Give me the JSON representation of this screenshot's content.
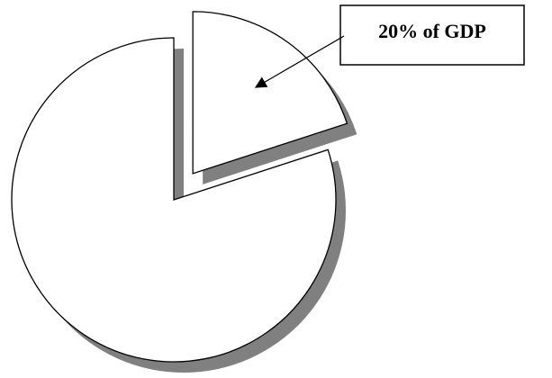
{
  "chart_data": {
    "type": "pie",
    "values": [
      20,
      80
    ],
    "value_labels": [
      "20% of GDP",
      null
    ],
    "colors": [
      "#ffffff",
      "#ffffff"
    ],
    "shadow_color": "#808080",
    "explode": [
      1,
      0
    ]
  }
}
